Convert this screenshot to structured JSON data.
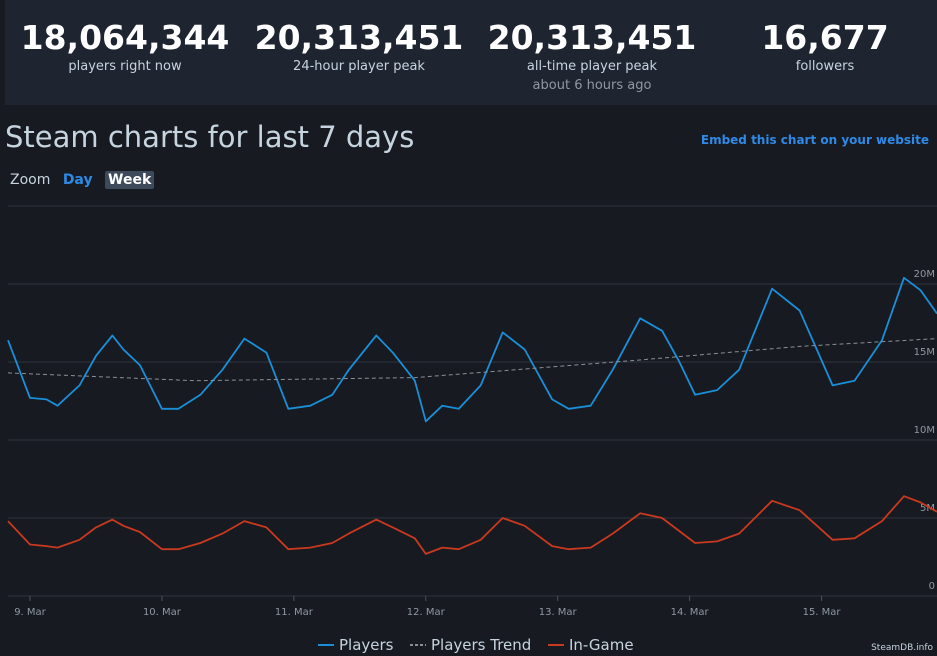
{
  "stats": [
    {
      "value": "18,064,344",
      "label": "players right now"
    },
    {
      "value": "20,313,451",
      "label": "24-hour player peak"
    },
    {
      "value": "20,313,451",
      "label": "all-time player peak",
      "note": "about 6 hours ago"
    },
    {
      "value": "16,677",
      "label": "followers"
    }
  ],
  "heading": "Steam charts for last 7 days",
  "embed_link": "Embed this chart on your website",
  "zoom": {
    "label": "Zoom",
    "options": [
      "Day",
      "Week"
    ]
  },
  "credit": "SteamDB.info",
  "chart_data": {
    "type": "line",
    "x": [
      -4,
      0,
      3,
      5,
      9,
      12,
      15,
      17,
      20,
      24,
      27,
      31,
      35,
      39,
      43,
      47,
      51,
      55,
      58,
      63,
      66,
      70,
      72,
      75,
      78,
      82,
      86,
      90,
      95,
      98,
      102,
      106,
      111,
      115,
      118,
      121,
      125,
      129,
      135,
      140,
      146,
      150,
      155,
      159,
      162,
      165
    ],
    "xlim": [
      -4,
      165
    ],
    "xticks": [
      {
        "value": 0,
        "label": "9. Mar"
      },
      {
        "value": 24,
        "label": "10. Mar"
      },
      {
        "value": 48,
        "label": "11. Mar"
      },
      {
        "value": 72,
        "label": "12. Mar"
      },
      {
        "value": 96,
        "label": "13. Mar"
      },
      {
        "value": 120,
        "label": "14. Mar"
      },
      {
        "value": 144,
        "label": "15. Mar"
      }
    ],
    "ylim": [
      0,
      25000000
    ],
    "yticks": [
      {
        "value": 0,
        "label": "0"
      },
      {
        "value": 5000000,
        "label": "5M"
      },
      {
        "value": 10000000,
        "label": "10M"
      },
      {
        "value": 15000000,
        "label": "15M"
      },
      {
        "value": 20000000,
        "label": "20M"
      }
    ],
    "grid": true,
    "series": [
      {
        "name": "Players",
        "color": "#1a8fd8",
        "values": [
          16400000,
          12700000,
          12600000,
          12200000,
          13500000,
          15400000,
          16700000,
          15800000,
          14800000,
          12000000,
          12000000,
          12900000,
          14500000,
          16500000,
          15600000,
          12000000,
          12200000,
          12900000,
          14500000,
          16700000,
          15600000,
          13800000,
          11200000,
          12200000,
          12000000,
          13500000,
          16900000,
          15800000,
          12600000,
          12000000,
          12200000,
          14500000,
          17800000,
          17000000,
          15100000,
          12900000,
          13200000,
          14500000,
          19700000,
          18300000,
          13500000,
          13800000,
          16400000,
          20400000,
          19600000,
          18100000
        ]
      },
      {
        "name": "Players Trend",
        "color": "#8a8f96",
        "dashed": true,
        "x": [
          -4,
          30,
          70,
          110,
          140,
          165
        ],
        "values": [
          14300000,
          13800000,
          14000000,
          15100000,
          16000000,
          16500000
        ]
      },
      {
        "name": "In-Game",
        "color": "#c9391f",
        "values": [
          4800000,
          3300000,
          3200000,
          3100000,
          3600000,
          4400000,
          4900000,
          4500000,
          4100000,
          3000000,
          3000000,
          3400000,
          4000000,
          4800000,
          4400000,
          3000000,
          3100000,
          3400000,
          4000000,
          4900000,
          4400000,
          3700000,
          2700000,
          3100000,
          3000000,
          3600000,
          5000000,
          4500000,
          3200000,
          3000000,
          3100000,
          4000000,
          5300000,
          5000000,
          4200000,
          3400000,
          3500000,
          4000000,
          6100000,
          5500000,
          3600000,
          3700000,
          4800000,
          6400000,
          6000000,
          5400000
        ]
      }
    ]
  }
}
